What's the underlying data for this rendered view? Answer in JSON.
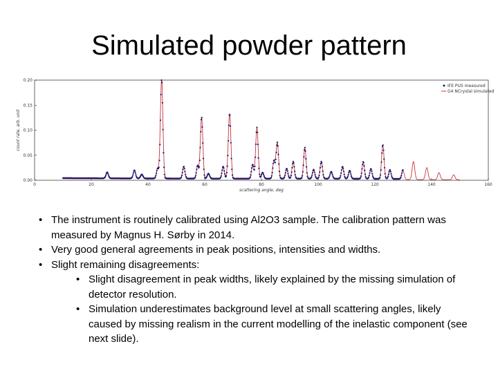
{
  "slide": {
    "title": "Simulated powder pattern",
    "bullets": [
      "The instrument is routinely calibrated using Al2O3 sample. The calibration pattern was measured by Magnus H. Sørby in 2014.",
      "Very good general agreements in peak positions, intensities and widths.",
      "Slight remaining disagreements:"
    ],
    "sub_bullets": [
      "Slight disagreement in peak widths, likely explained by the missing simulation of detector resolution.",
      "Simulation underestimates background level at small scattering angles, likely caused by missing realism in the current modelling of the inelastic component (see next slide)."
    ],
    "bullet_glyph": "•"
  },
  "chart_data": {
    "type": "line",
    "title": "",
    "xlabel": "scattering angle, deg",
    "ylabel": "count rate, arb. unit",
    "xlim": [
      0,
      160
    ],
    "ylim": [
      0,
      0.2
    ],
    "xticks": [
      0,
      20,
      40,
      60,
      80,
      100,
      120,
      140,
      160
    ],
    "xtick_labels": [
      "0",
      "20",
      "40",
      "60",
      "80",
      "100",
      "120",
      "140",
      "160"
    ],
    "yticks": [
      0,
      0.05,
      0.1,
      0.15,
      0.2
    ],
    "ytick_labels": [
      "0.00",
      "0.05",
      "0.10",
      "0.15",
      "0.20"
    ],
    "grid": false,
    "legend_position": "top-right",
    "series": [
      {
        "name": "IFE PUS measured",
        "style": "markers",
        "color": "#1a1a6e",
        "x_range": [
          10,
          130
        ]
      },
      {
        "name": "G4 NCrystal simulated",
        "style": "line",
        "color": "#c8333a",
        "x_range": [
          10,
          150
        ]
      }
    ],
    "background": [
      [
        10,
        0.003
      ],
      [
        60,
        0.002
      ],
      [
        100,
        0.002
      ],
      [
        150,
        0.001
      ]
    ],
    "peaks": [
      {
        "x": 25.6,
        "y": 0.012
      },
      {
        "x": 35.2,
        "y": 0.016
      },
      {
        "x": 37.8,
        "y": 0.008
      },
      {
        "x": 43.4,
        "y": 0.02
      },
      {
        "x": 44.8,
        "y": 0.2
      },
      {
        "x": 52.6,
        "y": 0.024
      },
      {
        "x": 57.5,
        "y": 0.026
      },
      {
        "x": 58.9,
        "y": 0.123
      },
      {
        "x": 61.3,
        "y": 0.01
      },
      {
        "x": 66.5,
        "y": 0.024
      },
      {
        "x": 68.3,
        "y": 0.016
      },
      {
        "x": 68.8,
        "y": 0.122
      },
      {
        "x": 76.9,
        "y": 0.028
      },
      {
        "x": 78.4,
        "y": 0.102
      },
      {
        "x": 80.4,
        "y": 0.012
      },
      {
        "x": 84.4,
        "y": 0.036
      },
      {
        "x": 85.6,
        "y": 0.072
      },
      {
        "x": 88.9,
        "y": 0.02
      },
      {
        "x": 91.2,
        "y": 0.034
      },
      {
        "x": 95.3,
        "y": 0.062
      },
      {
        "x": 98.4,
        "y": 0.018
      },
      {
        "x": 101.1,
        "y": 0.034
      },
      {
        "x": 104.6,
        "y": 0.014
      },
      {
        "x": 108.6,
        "y": 0.024
      },
      {
        "x": 111.1,
        "y": 0.016
      },
      {
        "x": 115.9,
        "y": 0.034
      },
      {
        "x": 118.6,
        "y": 0.02
      },
      {
        "x": 122.8,
        "y": 0.068
      },
      {
        "x": 125.3,
        "y": 0.018
      },
      {
        "x": 129.9,
        "y": 0.018
      },
      {
        "x": 133.6,
        "y": 0.036
      },
      {
        "x": 138.3,
        "y": 0.024
      },
      {
        "x": 142.6,
        "y": 0.014
      },
      {
        "x": 147.8,
        "y": 0.01
      }
    ]
  }
}
